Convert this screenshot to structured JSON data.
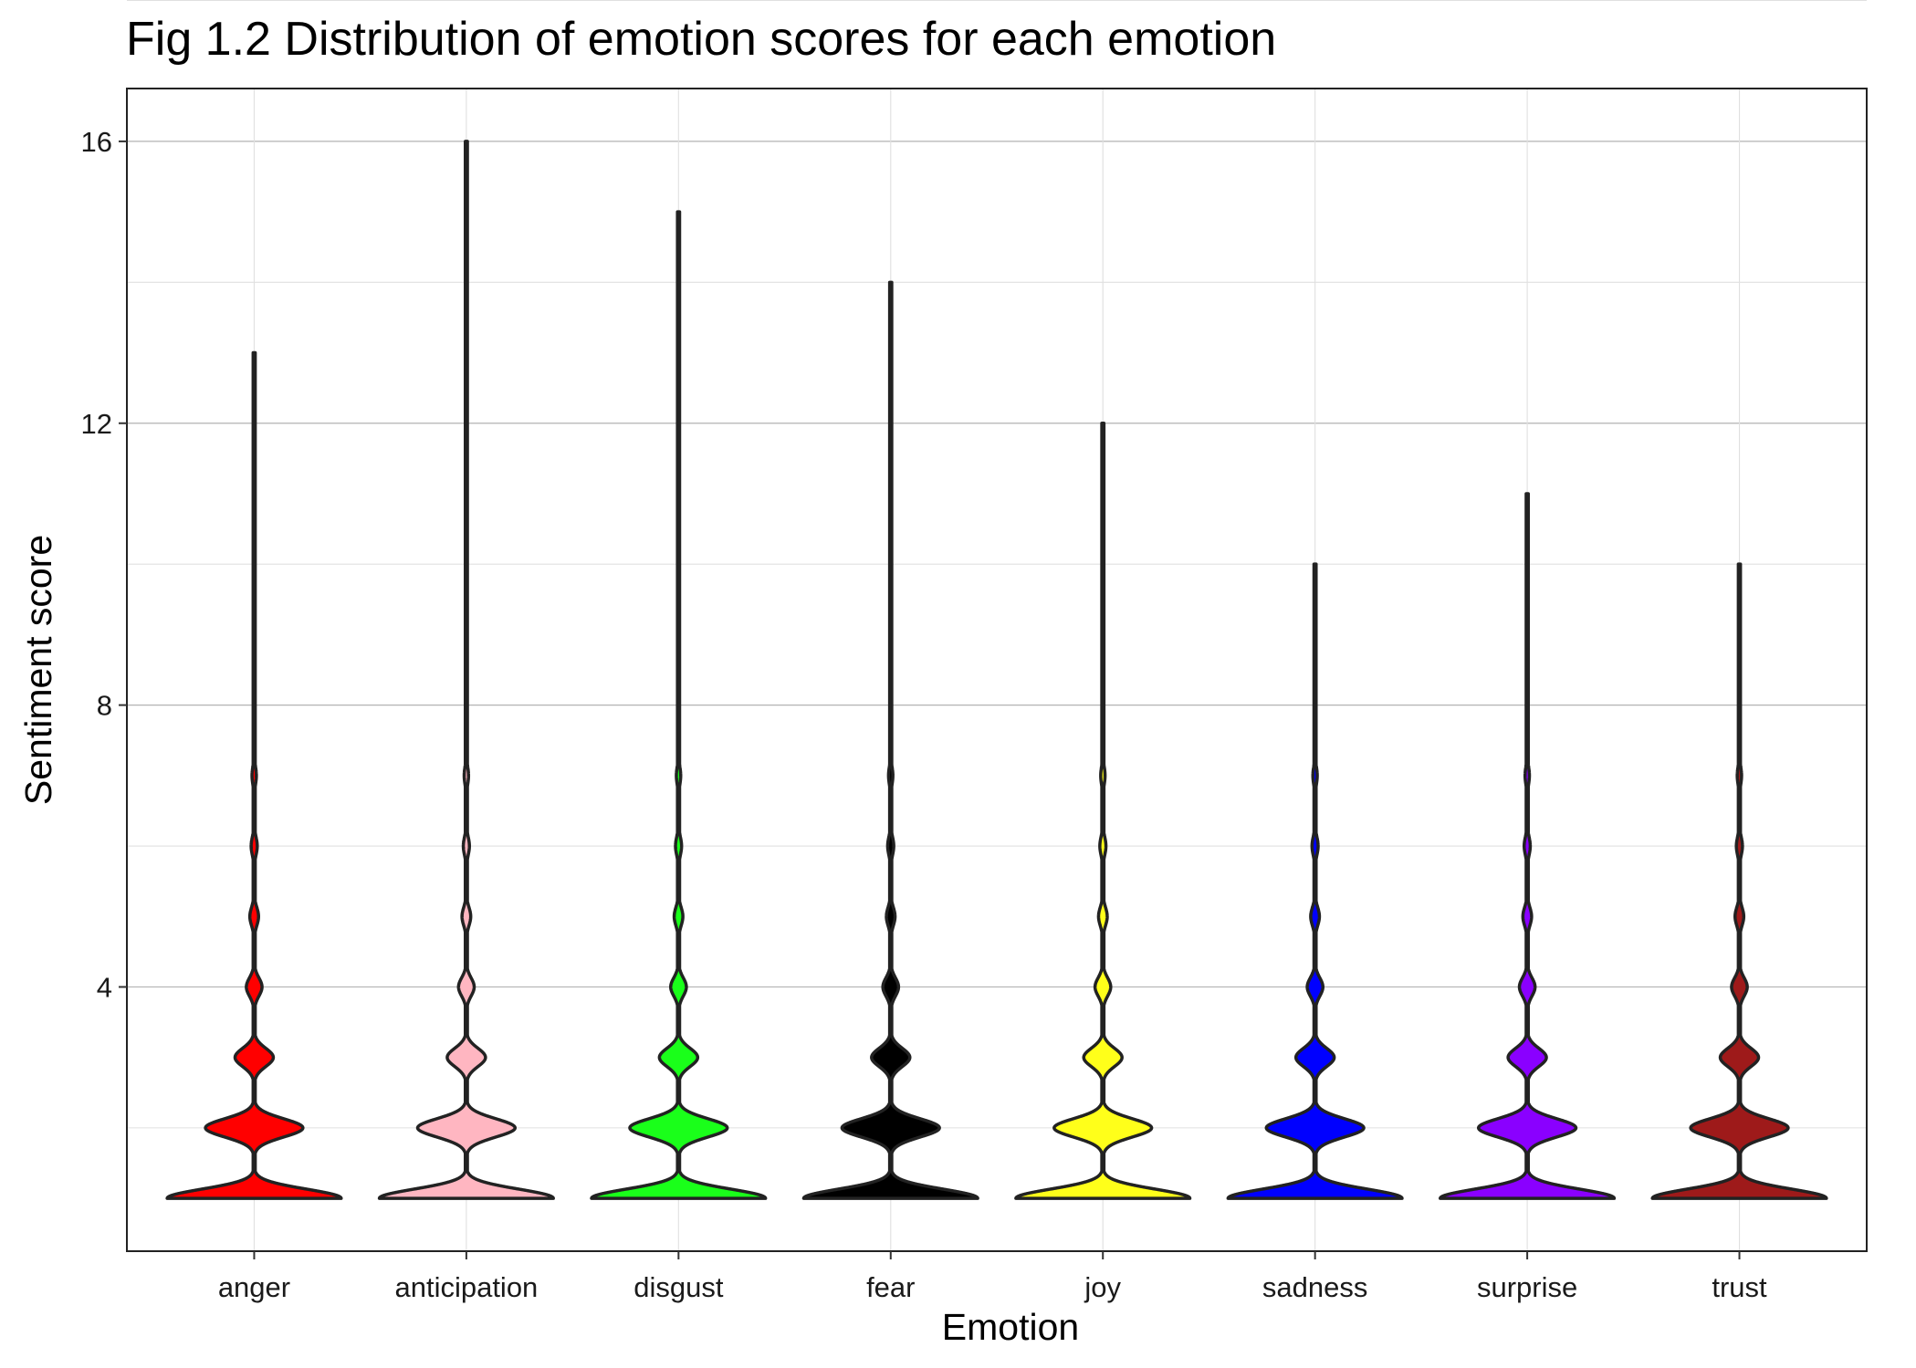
{
  "chart_data": {
    "type": "violin",
    "title": "Fig 1.2 Distribution of emotion scores for each emotion",
    "xlabel": "Emotion",
    "ylabel": "Sentiment score",
    "ylim": [
      0.25,
      16.75
    ],
    "yticks": [
      4,
      8,
      12,
      16
    ],
    "grid": true,
    "legend": "none",
    "categories": [
      "anger",
      "anticipation",
      "disgust",
      "fear",
      "joy",
      "sadness",
      "surprise",
      "trust"
    ],
    "series": [
      {
        "category": "anger",
        "color": "#ff0000",
        "min": 1,
        "max": 13,
        "density": {
          "1": 1.0,
          "2": 0.56,
          "3": 0.22,
          "4": 0.09,
          "5": 0.05,
          "6": 0.035,
          "7": 0.025
        }
      },
      {
        "category": "anticipation",
        "color": "#ffb6c1",
        "min": 1,
        "max": 16,
        "density": {
          "1": 1.0,
          "2": 0.56,
          "3": 0.22,
          "4": 0.09,
          "5": 0.05,
          "6": 0.035,
          "7": 0.025
        }
      },
      {
        "category": "disgust",
        "color": "#1aff1a",
        "min": 1,
        "max": 15,
        "density": {
          "1": 1.0,
          "2": 0.56,
          "3": 0.22,
          "4": 0.09,
          "5": 0.05,
          "6": 0.035,
          "7": 0.025
        }
      },
      {
        "category": "fear",
        "color": "#000000",
        "min": 1,
        "max": 14,
        "density": {
          "1": 1.0,
          "2": 0.56,
          "3": 0.22,
          "4": 0.09,
          "5": 0.05,
          "6": 0.035,
          "7": 0.025
        }
      },
      {
        "category": "joy",
        "color": "#ffff1a",
        "min": 1,
        "max": 12,
        "density": {
          "1": 1.0,
          "2": 0.56,
          "3": 0.22,
          "4": 0.09,
          "5": 0.05,
          "6": 0.035,
          "7": 0.025
        }
      },
      {
        "category": "sadness",
        "color": "#0000ff",
        "min": 1,
        "max": 10,
        "density": {
          "1": 1.0,
          "2": 0.56,
          "3": 0.22,
          "4": 0.09,
          "5": 0.05,
          "6": 0.035,
          "7": 0.025
        }
      },
      {
        "category": "surprise",
        "color": "#8a00ff",
        "min": 1,
        "max": 11,
        "density": {
          "1": 1.0,
          "2": 0.56,
          "3": 0.22,
          "4": 0.09,
          "5": 0.05,
          "6": 0.035,
          "7": 0.025
        }
      },
      {
        "category": "trust",
        "color": "#9e1a1a",
        "min": 1,
        "max": 10,
        "density": {
          "1": 1.0,
          "2": 0.56,
          "3": 0.22,
          "4": 0.09,
          "5": 0.05,
          "6": 0.035,
          "7": 0.025
        }
      }
    ]
  }
}
